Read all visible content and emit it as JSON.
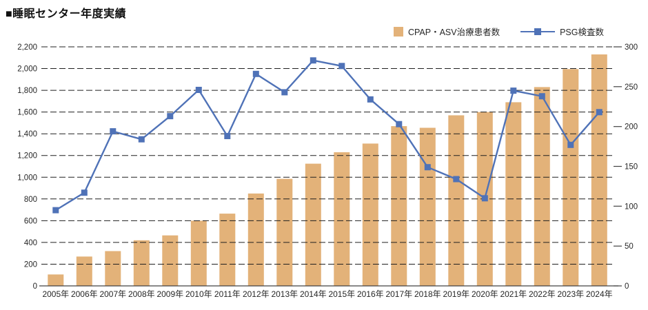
{
  "page": {
    "title": "■睡眠センター年度実績"
  },
  "legend": [
    {
      "label": "CPAP・ASV治療患者数",
      "type": "bar",
      "color": "#E3B279"
    },
    {
      "label": "PSG検査数",
      "type": "line",
      "color": "#4F72B7"
    }
  ],
  "chart_data": {
    "type": "bar+line combo",
    "title": "睡眠センター年度実績",
    "categories": [
      "2005年",
      "2006年",
      "2007年",
      "2008年",
      "2009年",
      "2010年",
      "2011年",
      "2012年",
      "2013年",
      "2014年",
      "2015年",
      "2016年",
      "2017年",
      "2018年",
      "2019年",
      "2020年",
      "2021年",
      "2022年",
      "2023年",
      "2024年"
    ],
    "series": [
      {
        "name": "CPAP・ASV治療患者数",
        "type": "bar",
        "axis": "left",
        "color": "#E3B279",
        "values": [
          105,
          270,
          320,
          420,
          465,
          600,
          665,
          850,
          985,
          1125,
          1230,
          1310,
          1470,
          1455,
          1570,
          1600,
          1690,
          1830,
          1995,
          2130
        ]
      },
      {
        "name": "PSG検査数",
        "type": "line",
        "axis": "right",
        "color": "#4F72B7",
        "values": [
          95,
          117,
          194,
          184,
          213,
          246,
          188,
          266,
          243,
          283,
          276,
          234,
          203,
          149,
          134,
          110,
          245,
          238,
          177,
          218
        ]
      }
    ],
    "left_axis": {
      "min": 0,
      "max": 2200,
      "step": 200,
      "tick_labels": [
        "0",
        "200",
        "400",
        "600",
        "800",
        "1,000",
        "1,200",
        "1,400",
        "1,600",
        "1,800",
        "2,000",
        "2,200"
      ]
    },
    "right_axis": {
      "min": 0,
      "max": 300,
      "step": 50,
      "tick_labels": [
        "0",
        "50",
        "100",
        "150",
        "200",
        "250",
        "300"
      ]
    },
    "grid": "horizontal dashed lines at every left-axis step, drawn over bars",
    "legend_position": "top-right",
    "colors": {
      "grid": "#1f1f1f",
      "axis_text": "#262626",
      "baseline": "#404040"
    }
  }
}
